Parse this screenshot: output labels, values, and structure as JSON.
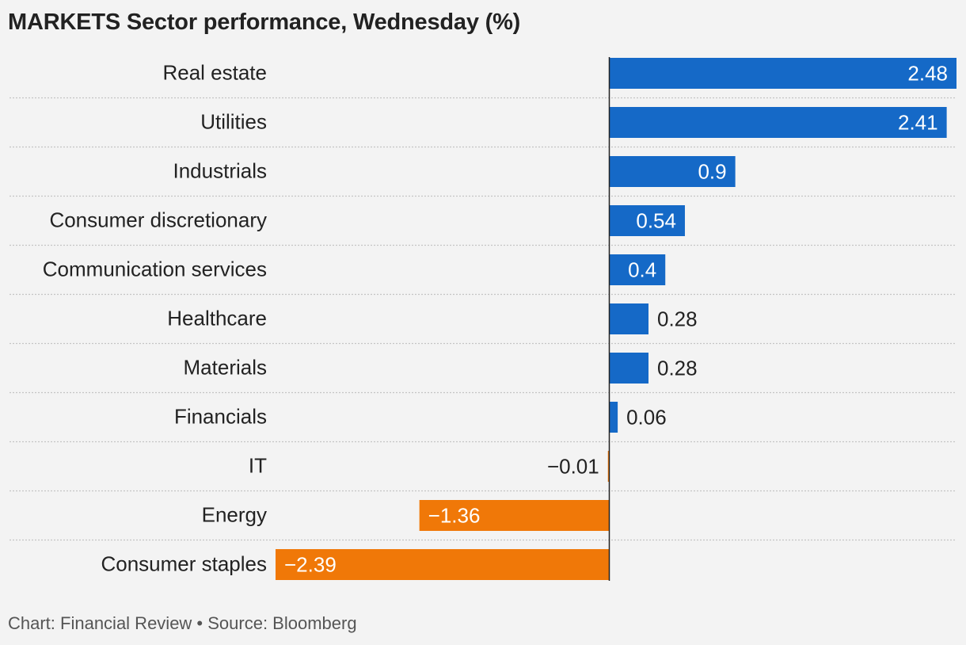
{
  "title": "MARKETS Sector performance, Wednesday (%)",
  "footer": "Chart: Financial Review • Source: Bloomberg",
  "chart_data": {
    "type": "bar",
    "orientation": "horizontal",
    "categories": [
      "Real estate",
      "Utilities",
      "Industrials",
      "Consumer discretionary",
      "Communication services",
      "Healthcare",
      "Materials",
      "Financials",
      "IT",
      "Energy",
      "Consumer staples"
    ],
    "values": [
      2.48,
      2.41,
      0.9,
      0.54,
      0.4,
      0.28,
      0.28,
      0.06,
      -0.01,
      -1.36,
      -2.39
    ],
    "value_labels": [
      "2.48",
      "2.41",
      "0.9",
      "0.54",
      "0.4",
      "0.28",
      "0.28",
      "0.06",
      "−0.01",
      "−1.36",
      "−2.39"
    ],
    "title": "MARKETS Sector performance, Wednesday (%)",
    "xlabel": "",
    "ylabel": "",
    "xlim": [
      -2.39,
      2.48
    ],
    "grid": "dotted row separators",
    "colors": {
      "positive": "#1569c7",
      "negative": "#f07808",
      "axis": "#222222"
    }
  }
}
